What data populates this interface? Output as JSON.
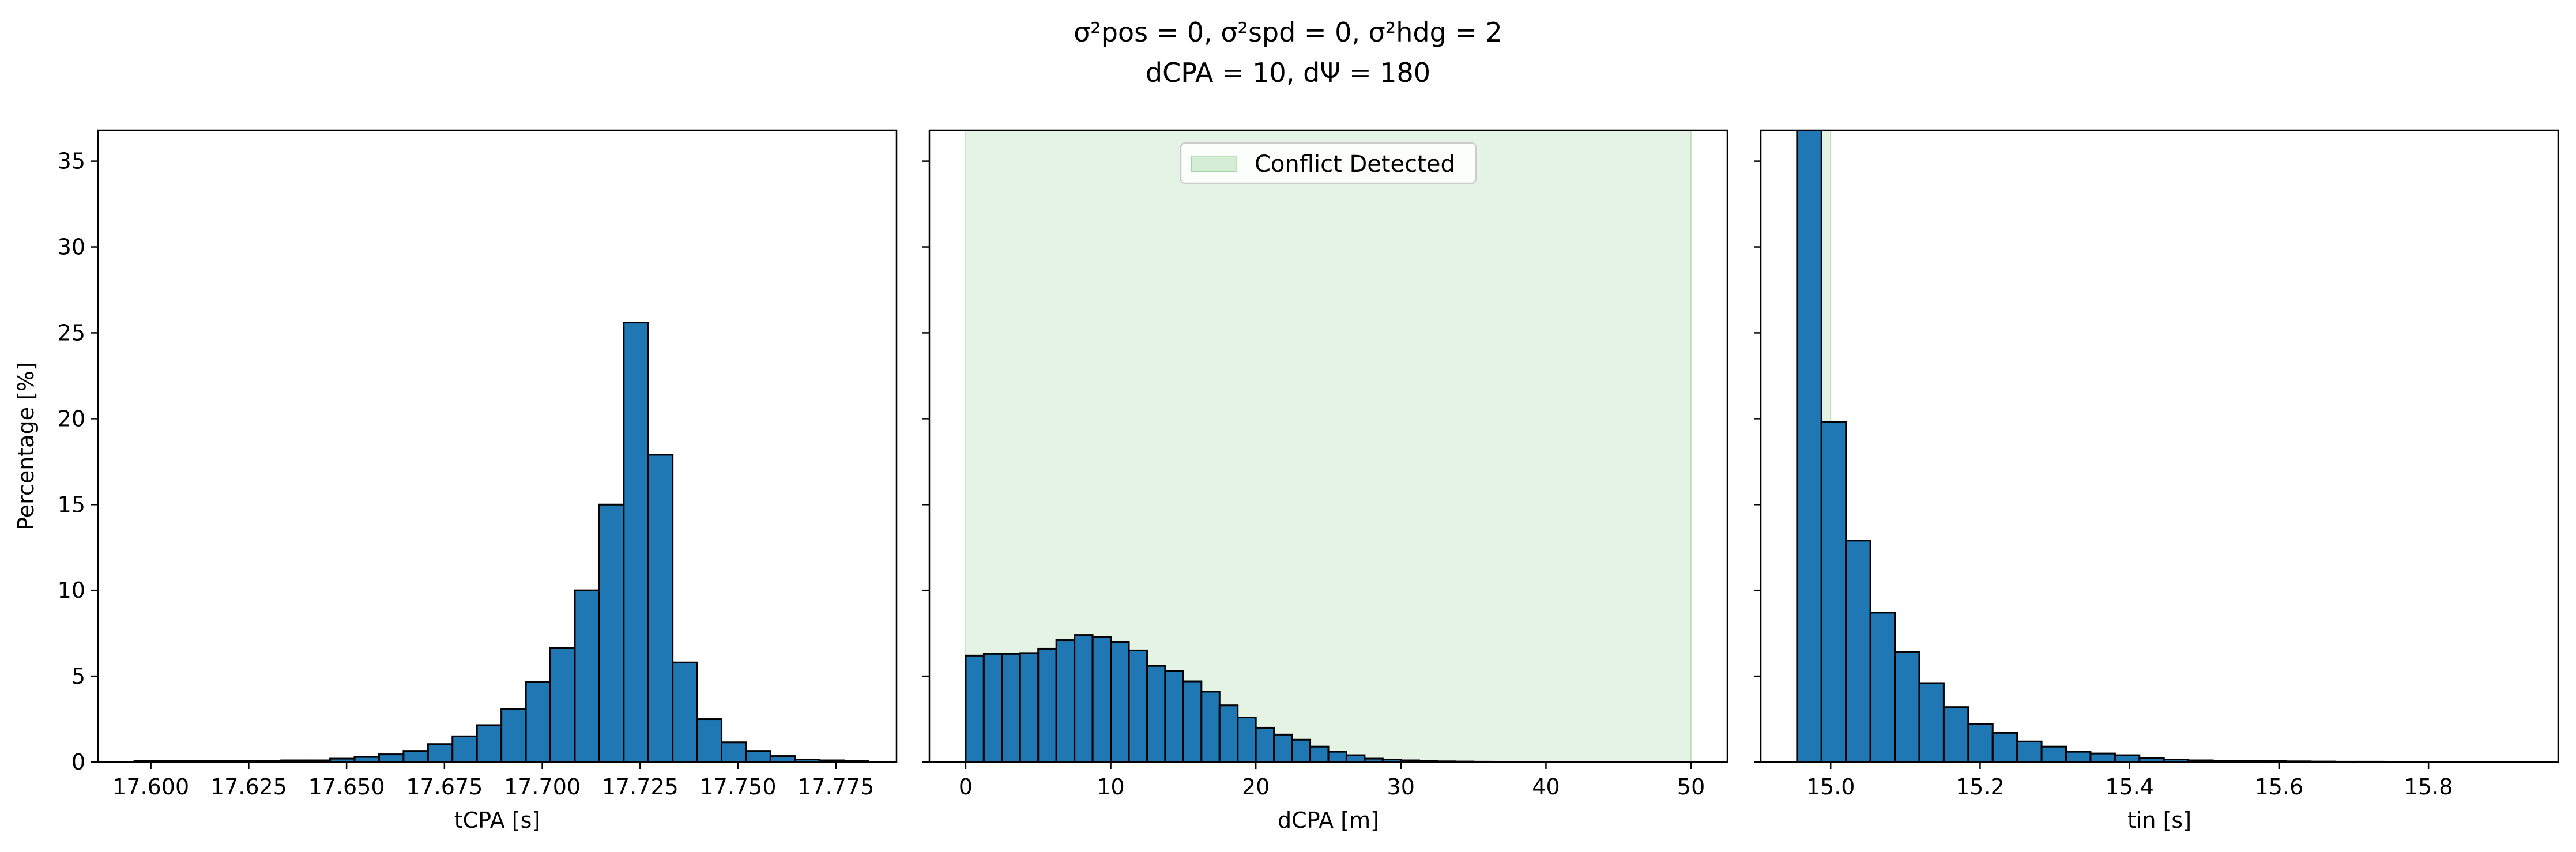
{
  "figure": {
    "title_line1": "σ²pos = 0, σ²spd = 0, σ²hdg = 2",
    "title_line2": "dCPA = 10, dΨ = 180"
  },
  "chart_data": [
    {
      "type": "bar",
      "panel": "left",
      "xlabel": "tCPA [s]",
      "ylabel": "Percentage [%]",
      "xlim": [
        17.5865,
        17.7905
      ],
      "ylim": [
        0,
        36.8
      ],
      "xticks": [
        17.6,
        17.625,
        17.65,
        17.675,
        17.7,
        17.725,
        17.75,
        17.775
      ],
      "xtick_labels": [
        "17.600",
        "17.625",
        "17.650",
        "17.675",
        "17.700",
        "17.725",
        "17.750",
        "17.775"
      ],
      "yticks": [
        0,
        5,
        10,
        15,
        20,
        25,
        30,
        35
      ],
      "ytick_labels": [
        "0",
        "5",
        "10",
        "15",
        "20",
        "25",
        "30",
        "35"
      ],
      "bin_start": 17.5958,
      "bin_width": 0.00625,
      "values": [
        0.05,
        0.05,
        0.05,
        0.05,
        0.05,
        0.05,
        0.1,
        0.1,
        0.2,
        0.3,
        0.45,
        0.65,
        1.05,
        1.5,
        2.15,
        3.1,
        4.65,
        6.65,
        10.0,
        15.0,
        25.6,
        17.9,
        5.8,
        2.5,
        1.15,
        0.65,
        0.35,
        0.15,
        0.1,
        0.05
      ],
      "bar_color": "#1f77b4",
      "edge_color": "#000000",
      "grid": false
    },
    {
      "type": "bar",
      "panel": "middle",
      "xlabel": "dCPA [m]",
      "xlim": [
        -2.5,
        52.5
      ],
      "ylim": [
        0,
        36.8
      ],
      "xticks": [
        0,
        10,
        20,
        30,
        40,
        50
      ],
      "xtick_labels": [
        "0",
        "10",
        "20",
        "30",
        "40",
        "50"
      ],
      "bin_start": 0,
      "bin_width": 1.25,
      "values": [
        6.2,
        6.3,
        6.3,
        6.35,
        6.6,
        7.1,
        7.4,
        7.3,
        7.0,
        6.5,
        5.6,
        5.3,
        4.7,
        4.1,
        3.3,
        2.6,
        2.0,
        1.6,
        1.3,
        0.9,
        0.6,
        0.4,
        0.2,
        0.15,
        0.1,
        0.06,
        0.04,
        0.03,
        0.02,
        0.01
      ],
      "shaded_region": {
        "from": 0,
        "to": 50,
        "color": "#2ca02c",
        "opacity": 0.12,
        "label": "Conflict Detected"
      },
      "legend": {
        "placement": "upper-center",
        "entries": [
          "Conflict Detected"
        ]
      },
      "bar_color": "#1f77b4",
      "edge_color": "#000000",
      "grid": false
    },
    {
      "type": "bar",
      "panel": "right",
      "xlabel": "tin [s]",
      "xlim": [
        14.9065,
        15.9735
      ],
      "ylim": [
        0,
        36.8
      ],
      "xticks": [
        15.0,
        15.2,
        15.4,
        15.6,
        15.8
      ],
      "xtick_labels": [
        "15.0",
        "15.2",
        "15.4",
        "15.6",
        "15.8"
      ],
      "bin_start": 14.955,
      "bin_width": 0.03273,
      "values": [
        38.0,
        19.8,
        12.9,
        8.7,
        6.4,
        4.6,
        3.2,
        2.2,
        1.7,
        1.2,
        0.9,
        0.6,
        0.5,
        0.4,
        0.25,
        0.15,
        0.1,
        0.08,
        0.06,
        0.05,
        0.04,
        0.03,
        0.02,
        0.02,
        0.01,
        0.01,
        0.01,
        0.01,
        0.01,
        0.01
      ],
      "shaded_region": {
        "from": 14.955,
        "to": 15.0,
        "color": "#2ca02c",
        "opacity": 0.12
      },
      "bar_color": "#1f77b4",
      "edge_color": "#000000",
      "grid": false
    }
  ]
}
